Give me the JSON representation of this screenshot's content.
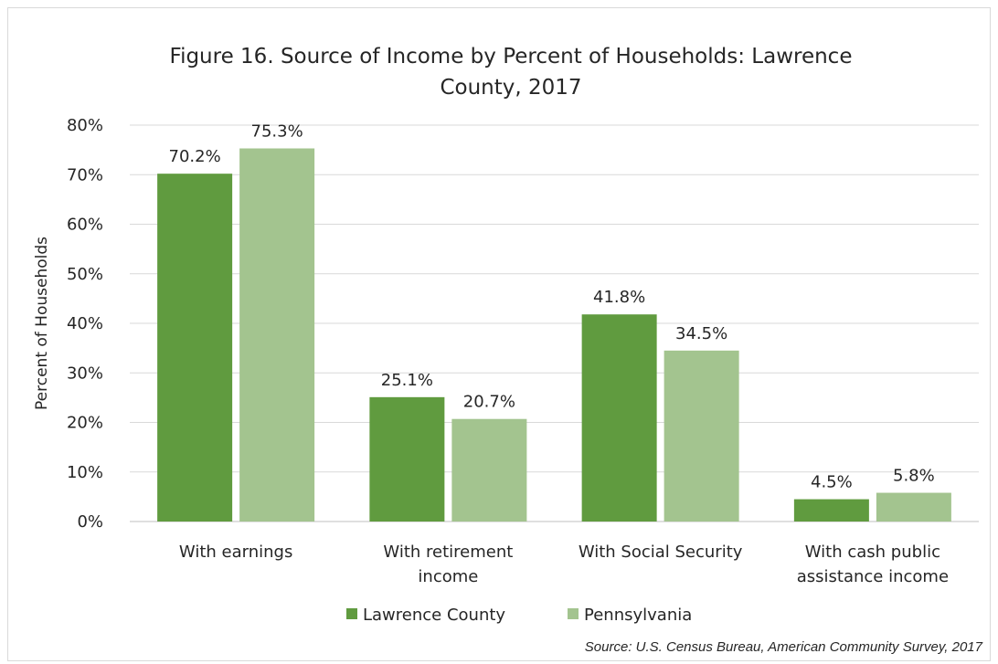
{
  "chart_data": {
    "type": "bar",
    "title": "Figure 16. Source of Income by Percent of Households: Lawrence County, 2017",
    "title_lines": [
      "Figure 16. Source of Income by Percent of Households: Lawrence",
      "County, 2017"
    ],
    "ylabel": "Percent of Households",
    "xlabel": "",
    "ylim": [
      0,
      80
    ],
    "yticks": [
      "0%",
      "10%",
      "20%",
      "30%",
      "40%",
      "50%",
      "60%",
      "70%",
      "80%"
    ],
    "categories": [
      [
        "With earnings"
      ],
      [
        "With retirement",
        "income"
      ],
      [
        "With Social Security"
      ],
      [
        "With cash public",
        "assistance income"
      ]
    ],
    "series": [
      {
        "name": "Lawrence County",
        "color": "#609b3f",
        "values": [
          70.2,
          25.1,
          41.8,
          4.5
        ],
        "labels": [
          "70.2%",
          "25.1%",
          "41.8%",
          "4.5%"
        ]
      },
      {
        "name": "Pennsylvania",
        "color": "#a3c48f",
        "values": [
          75.3,
          20.7,
          34.5,
          5.8
        ],
        "labels": [
          "75.3%",
          "20.7%",
          "34.5%",
          "5.8%"
        ]
      }
    ],
    "grid": true,
    "legend_position": "bottom",
    "source": "Source: U.S. Census Bureau, American Community Survey, 2017"
  }
}
